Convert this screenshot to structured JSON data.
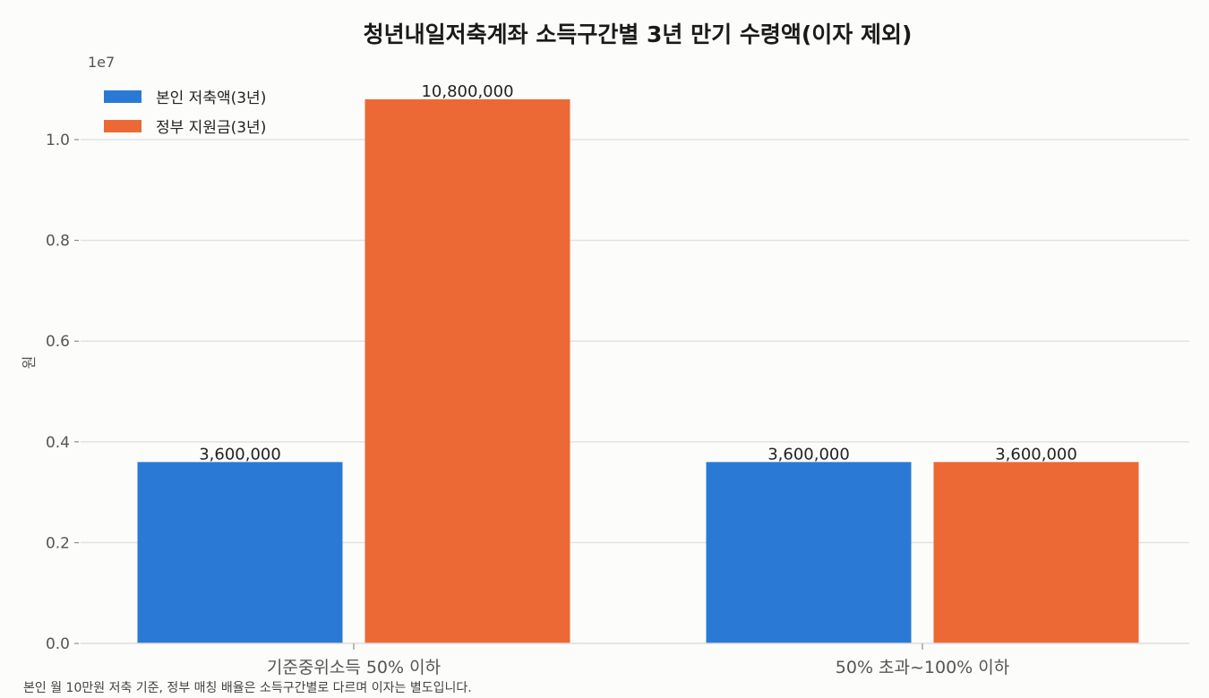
{
  "chart_data": {
    "type": "bar",
    "title": "청년내일저축계좌 소득구간별 3년 만기 수령액(이자 제외)",
    "xlabel": "",
    "ylabel": "원",
    "y_scale_label": "1e7",
    "ylim": [
      0,
      11000000
    ],
    "yticks": [
      0,
      2000000,
      4000000,
      6000000,
      8000000,
      10000000
    ],
    "ytick_labels": [
      "0.0",
      "0.2",
      "0.4",
      "0.6",
      "0.8",
      "1.0"
    ],
    "categories": [
      "기준중위소득 50% 이하",
      "50% 초과~100% 이하"
    ],
    "series": [
      {
        "name": "본인 저축액(3년)",
        "color": "#2a7ad5",
        "values": [
          3600000,
          3600000
        ],
        "labels": [
          "3,600,000",
          "3,600,000"
        ]
      },
      {
        "name": "정부 지원금(3년)",
        "color": "#ec6935",
        "values": [
          10800000,
          3600000
        ],
        "labels": [
          "10,800,000",
          "3,600,000"
        ]
      }
    ],
    "grid": "y",
    "legend_position": "top-left",
    "footnote": "본인 월 10만원 저축 기준, 정부 매칭 배율은 소득구간별로 다르며 이자는 별도입니다."
  }
}
